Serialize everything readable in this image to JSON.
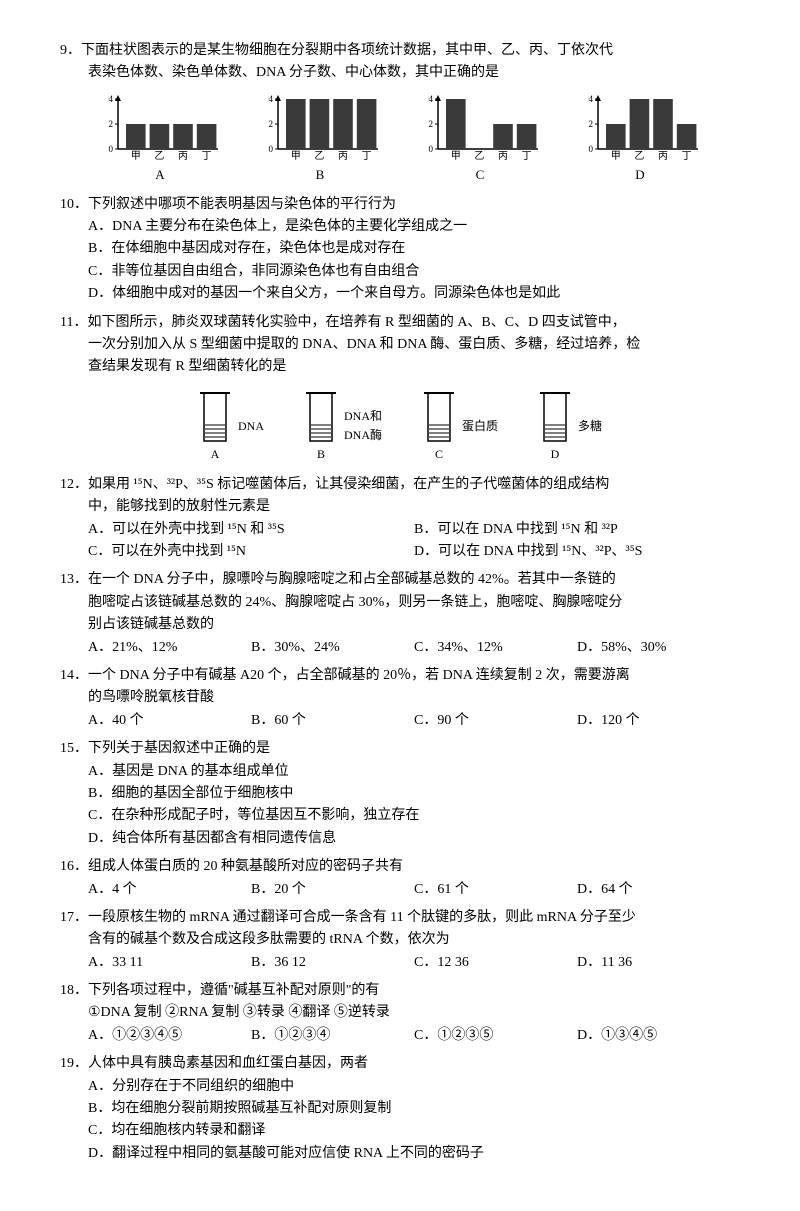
{
  "q9": {
    "num": "9．",
    "text1": "下面柱状图表示的是某生物细胞在分裂期中各项统计数据，其中甲、乙、丙、丁依次代",
    "text2": "表染色体数、染色单体数、DNA 分子数、中心体数，其中正确的是",
    "charts": [
      {
        "label": "A",
        "vals": [
          2,
          2,
          2,
          2
        ],
        "axis": [
          "甲",
          "乙",
          "丙",
          "丁"
        ]
      },
      {
        "label": "B",
        "vals": [
          4,
          4,
          4,
          4
        ],
        "axis": [
          "甲",
          "乙",
          "丙",
          "丁"
        ]
      },
      {
        "label": "C",
        "vals": [
          4,
          0,
          2,
          2
        ],
        "axis": [
          "甲",
          "乙",
          "丙",
          "丁"
        ]
      },
      {
        "label": "D",
        "vals": [
          2,
          4,
          4,
          2
        ],
        "axis": [
          "甲",
          "乙",
          "丙",
          "丁"
        ]
      }
    ],
    "yticks": [
      0,
      2,
      4
    ],
    "bar_color": "#3a3a3a",
    "axis_color": "#000"
  },
  "q10": {
    "num": "10．",
    "text": "下列叙述中哪项不能表明基因与染色体的平行行为",
    "a": "A．DNA 主要分布在染色体上，是染色体的主要化学组成之一",
    "b": "B．在体细胞中基因成对存在，染色体也是成对存在",
    "c": "C．非等位基因自由组合，非同源染色体也有自由组合",
    "d": "D．体细胞中成对的基因一个来自父方，一个来自母方。同源染色体也是如此"
  },
  "q11": {
    "num": "11．",
    "text1": "如下图所示，肺炎双球菌转化实验中，在培养有 R 型细菌的 A、B、C、D 四支试管中，",
    "text2": "一次分别加入从 S 型细菌中提取的 DNA、DNA 和 DNA 酶、蛋白质、多糖，经过培养，检",
    "text3": "查结果发现有 R 型细菌转化的是",
    "tubes": [
      {
        "label": "A",
        "txt": "DNA"
      },
      {
        "label": "B",
        "txt": "DNA和\nDNA酶"
      },
      {
        "label": "C",
        "txt": "蛋白质"
      },
      {
        "label": "D",
        "txt": "多糖"
      }
    ]
  },
  "q12": {
    "num": "12．",
    "text1": "如果用 ¹⁵N、³²P、³⁵S 标记噬菌体后，让其侵染细菌，在产生的子代噬菌体的组成结构",
    "text2": "中，能够找到的放射性元素是",
    "a": "A．可以在外壳中找到 ¹⁵N 和 ³⁵S",
    "b": "B．可以在 DNA 中找到 ¹⁵N 和 ³²P",
    "c": "C．可以在外壳中找到 ¹⁵N",
    "d": "D．可以在 DNA 中找到 ¹⁵N、³²P、³⁵S"
  },
  "q13": {
    "num": "13．",
    "text1": "在一个 DNA 分子中，腺嘌呤与胸腺嘧啶之和占全部碱基总数的 42%。若其中一条链的",
    "text2": "胞嘧啶占该链碱基总数的 24%、胸腺嘧啶占 30%，则另一条链上，胞嘧啶、胸腺嘧啶分",
    "text3": "别占该链碱基总数的",
    "a": "A．21%、12%",
    "b": "B．30%、24%",
    "c": "C．34%、12%",
    "d": "D．58%、30%"
  },
  "q14": {
    "num": "14．",
    "text1": "一个 DNA 分子中有碱基 A20 个，占全部碱基的 20％，若 DNA 连续复制 2 次，需要游离",
    "text2": "的鸟嘌呤脱氧核苷酸",
    "a": "A．40 个",
    "b": "B．60 个",
    "c": "C．90 个",
    "d": "D．120 个"
  },
  "q15": {
    "num": "15．",
    "text": "下列关于基因叙述中正确的是",
    "a": "A．基因是 DNA 的基本组成单位",
    "b": "B．细胞的基因全部位于细胞核中",
    "c": "C．在杂种形成配子时，等位基因互不影响，独立存在",
    "d": "D．纯合体所有基因都含有相同遗传信息"
  },
  "q16": {
    "num": "16．",
    "text": "组成人体蛋白质的 20 种氨基酸所对应的密码子共有",
    "a": "A．4 个",
    "b": "B．20 个",
    "c": "C．61 个",
    "d": "D．64 个"
  },
  "q17": {
    "num": "17．",
    "text1": "一段原核生物的 mRNA 通过翻译可合成一条含有 11 个肽键的多肽，则此 mRNA 分子至少",
    "text2": "含有的碱基个数及合成这段多肽需要的 tRNA 个数，依次为",
    "a": "A．33  11",
    "b": "B．36  12",
    "c": "C．12  36",
    "d": "D．11  36"
  },
  "q18": {
    "num": "18．",
    "text": "下列各项过程中，遵循\"碱基互补配对原则\"的有",
    "line": "①DNA 复制    ②RNA 复制    ③转录    ④翻译    ⑤逆转录",
    "a": "A．①②③④⑤",
    "b": "B．①②③④",
    "c": "C．①②③⑤",
    "d": "D．①③④⑤"
  },
  "q19": {
    "num": "19．",
    "text": "人体中具有胰岛素基因和血红蛋白基因，两者",
    "a": "A．分别存在于不同组织的细胞中",
    "b": "B．均在细胞分裂前期按照碱基互补配对原则复制",
    "c": "C．均在细胞核内转录和翻译",
    "d": "D．翻译过程中相同的氨基酸可能对应信使 RNA 上不同的密码子"
  }
}
